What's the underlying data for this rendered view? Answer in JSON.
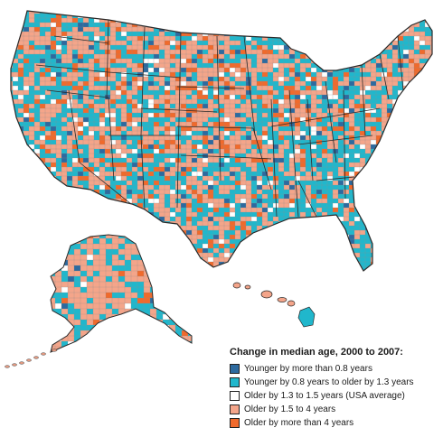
{
  "map": {
    "subject": "Change in median age by county, 2000 to 2007",
    "regions": [
      "contiguous-us",
      "alaska",
      "hawaii"
    ]
  },
  "legend": {
    "title": "Change in median age, 2000 to 2007:",
    "items": [
      {
        "label": "Younger by more than 0.8 years",
        "color": "#2d6a9f"
      },
      {
        "label": "Younger by 0.8 years to older by 1.3 years",
        "color": "#20b7cc"
      },
      {
        "label": "Older by 1.3 to 1.5 years (USA average)",
        "color": "#ffffff"
      },
      {
        "label": "Older by 1.5 to 4 years",
        "color": "#f4a58a"
      },
      {
        "label": "Older by more than 4 years",
        "color": "#f06a2c"
      }
    ]
  },
  "colors": {
    "state_border": "#2a2a2a",
    "county_border": "#8a8a8a"
  }
}
